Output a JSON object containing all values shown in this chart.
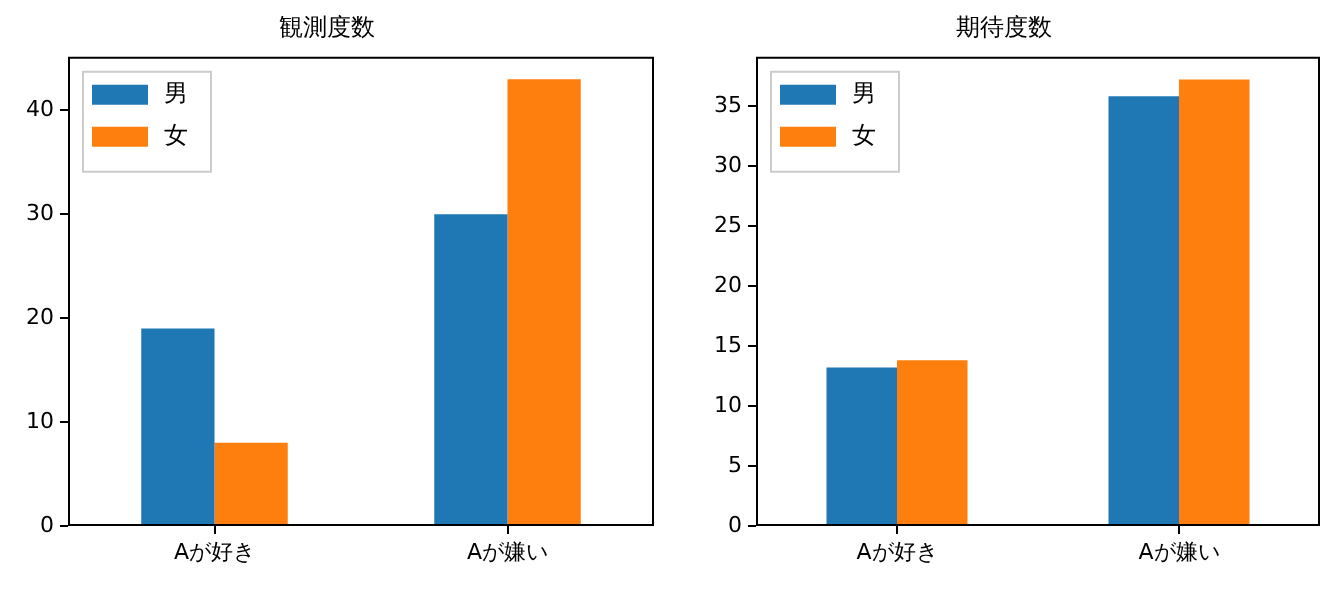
{
  "chart_data": [
    {
      "type": "bar",
      "title": "観測度数",
      "categories": [
        "Aが好き",
        "Aが嫌い"
      ],
      "series": [
        {
          "name": "男",
          "color": "#1f77b4",
          "values": [
            19,
            30
          ]
        },
        {
          "name": "女",
          "color": "#ff7f0e",
          "values": [
            8,
            43
          ]
        }
      ],
      "ylim": [
        0,
        45.15
      ],
      "yticks": [
        0,
        10,
        20,
        30,
        40
      ],
      "legend": "top left",
      "grid": false
    },
    {
      "type": "bar",
      "title": "期待度数",
      "categories": [
        "Aが好き",
        "Aが嫌い"
      ],
      "series": [
        {
          "name": "男",
          "color": "#1f77b4",
          "values": [
            13.2,
            35.8
          ]
        },
        {
          "name": "女",
          "color": "#ff7f0e",
          "values": [
            13.8,
            37.2
          ]
        }
      ],
      "ylim": [
        0,
        39.09
      ],
      "yticks": [
        0,
        5,
        10,
        15,
        20,
        25,
        30,
        35
      ],
      "legend": "top left",
      "grid": false
    }
  ]
}
